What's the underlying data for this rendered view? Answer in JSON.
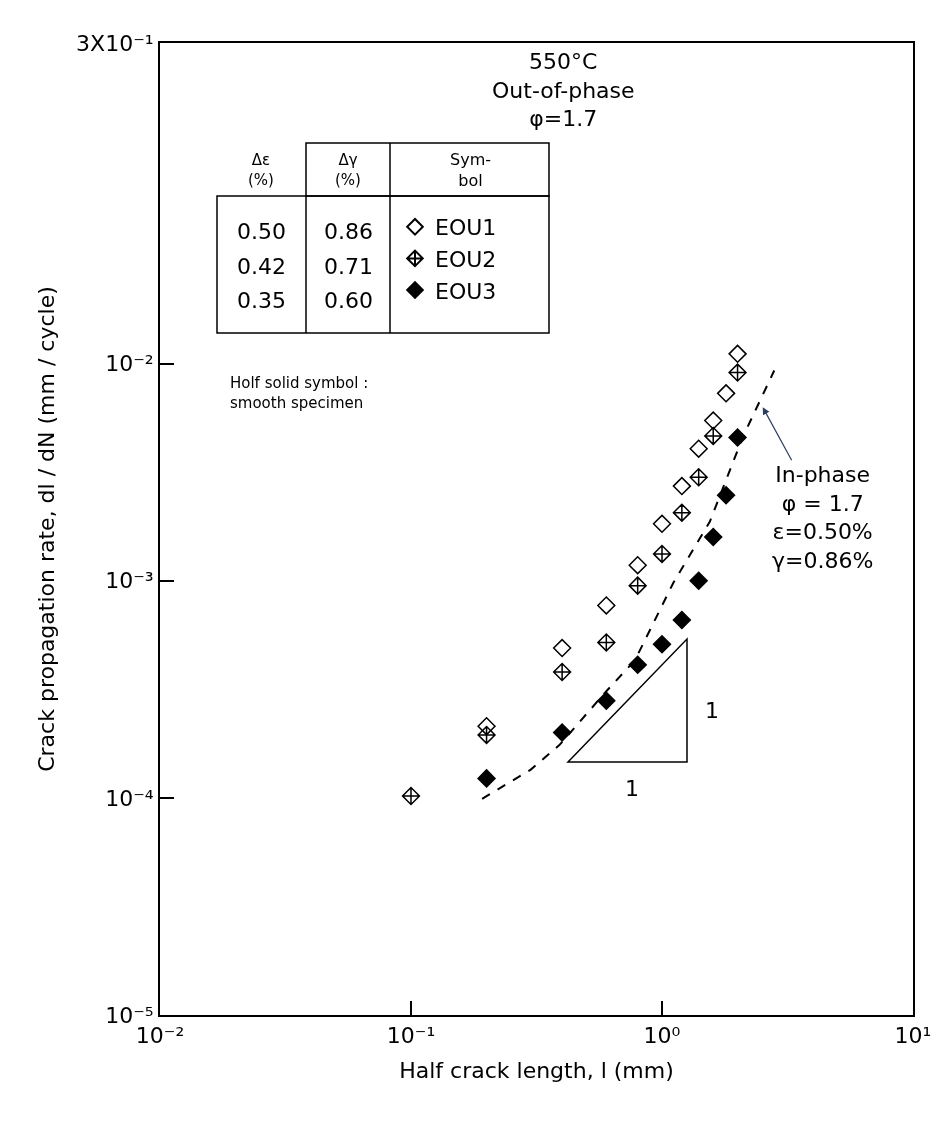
{
  "chart_data": {
    "type": "scatter",
    "xlabel": "Half crack length, l (mm)",
    "ylabel": "Crack propagation rate, dl / dN (mm / cycle)",
    "log": "xy",
    "legend": "top left",
    "marker": "diamond",
    "xlim": [
      0.01,
      10
    ],
    "ylim": [
      1e-05,
      0.3
    ],
    "xticks": [
      {
        "value": 0.01,
        "label": "10⁻²"
      },
      {
        "value": 0.1,
        "label": "10⁻¹"
      },
      {
        "value": 1,
        "label": "10⁰"
      },
      {
        "value": 10,
        "label": "10¹"
      }
    ],
    "yticks": [
      {
        "value": 1e-05,
        "label": "10⁻⁵"
      },
      {
        "value": 0.0001,
        "label": "10⁻⁴"
      },
      {
        "value": 0.001,
        "label": "10⁻³"
      },
      {
        "value": 0.01,
        "label": "10⁻²"
      },
      {
        "value": 0.3,
        "label": "3X10⁻¹"
      }
    ],
    "series": [
      {
        "name": "EOU1",
        "color": "#000000",
        "x": [
          0.2,
          0.4,
          0.6,
          0.8,
          1.0,
          1.2,
          1.4,
          1.6,
          1.8,
          2.0
        ],
        "values": [
          0.000214,
          0.00049,
          0.00077,
          0.00118,
          0.00183,
          0.00273,
          0.00406,
          0.00547,
          0.0073,
          0.0111
        ]
      },
      {
        "name": "EOU2",
        "color": "#000000",
        "x": [
          0.1,
          0.2,
          0.4,
          0.6,
          0.8,
          1.0,
          1.2,
          1.4,
          1.6,
          2.0
        ],
        "values": [
          0.000102,
          0.000195,
          0.00038,
          0.00052,
          0.00095,
          0.00133,
          0.00206,
          0.003,
          0.00465,
          0.0091
        ]
      },
      {
        "name": "EOU3",
        "color": "#000000",
        "x": [
          0.2,
          0.4,
          0.6,
          0.8,
          1.0,
          1.2,
          1.4,
          1.6,
          1.8,
          2.0
        ],
        "values": [
          0.000123,
          0.0002,
          0.00028,
          0.00041,
          0.00051,
          0.00066,
          0.001,
          0.00159,
          0.00248,
          0.00457
        ]
      },
      {
        "type": "line",
        "color": "#000000",
        "line_style": "dashed",
        "marker": "none",
        "x": [
          0.192,
          0.3,
          0.39,
          0.6,
          0.78,
          1.11,
          1.55,
          2.1,
          2.8
        ],
        "values": [
          9.9e-05,
          0.000135,
          0.000175,
          0.00031,
          0.00043,
          0.00098,
          0.00187,
          0.0046,
          0.0093
        ]
      }
    ],
    "annotations": [
      "550°C\nOut-of-phase\nφ=1.7",
      "Δε\n(%)",
      "Δγ\n(%)",
      "Sym-\nbol",
      "0.50",
      "0.86",
      "0.42",
      "0.71",
      "0.35",
      "0.60",
      "Holf solid symbol :\nsmooth specimen",
      {
        "text": "In-phase\nφ = 1.7\nε=0.50%\nγ=0.86%",
        "x": 2.52,
        "y": 0.0063
      },
      "1",
      "1"
    ]
  }
}
